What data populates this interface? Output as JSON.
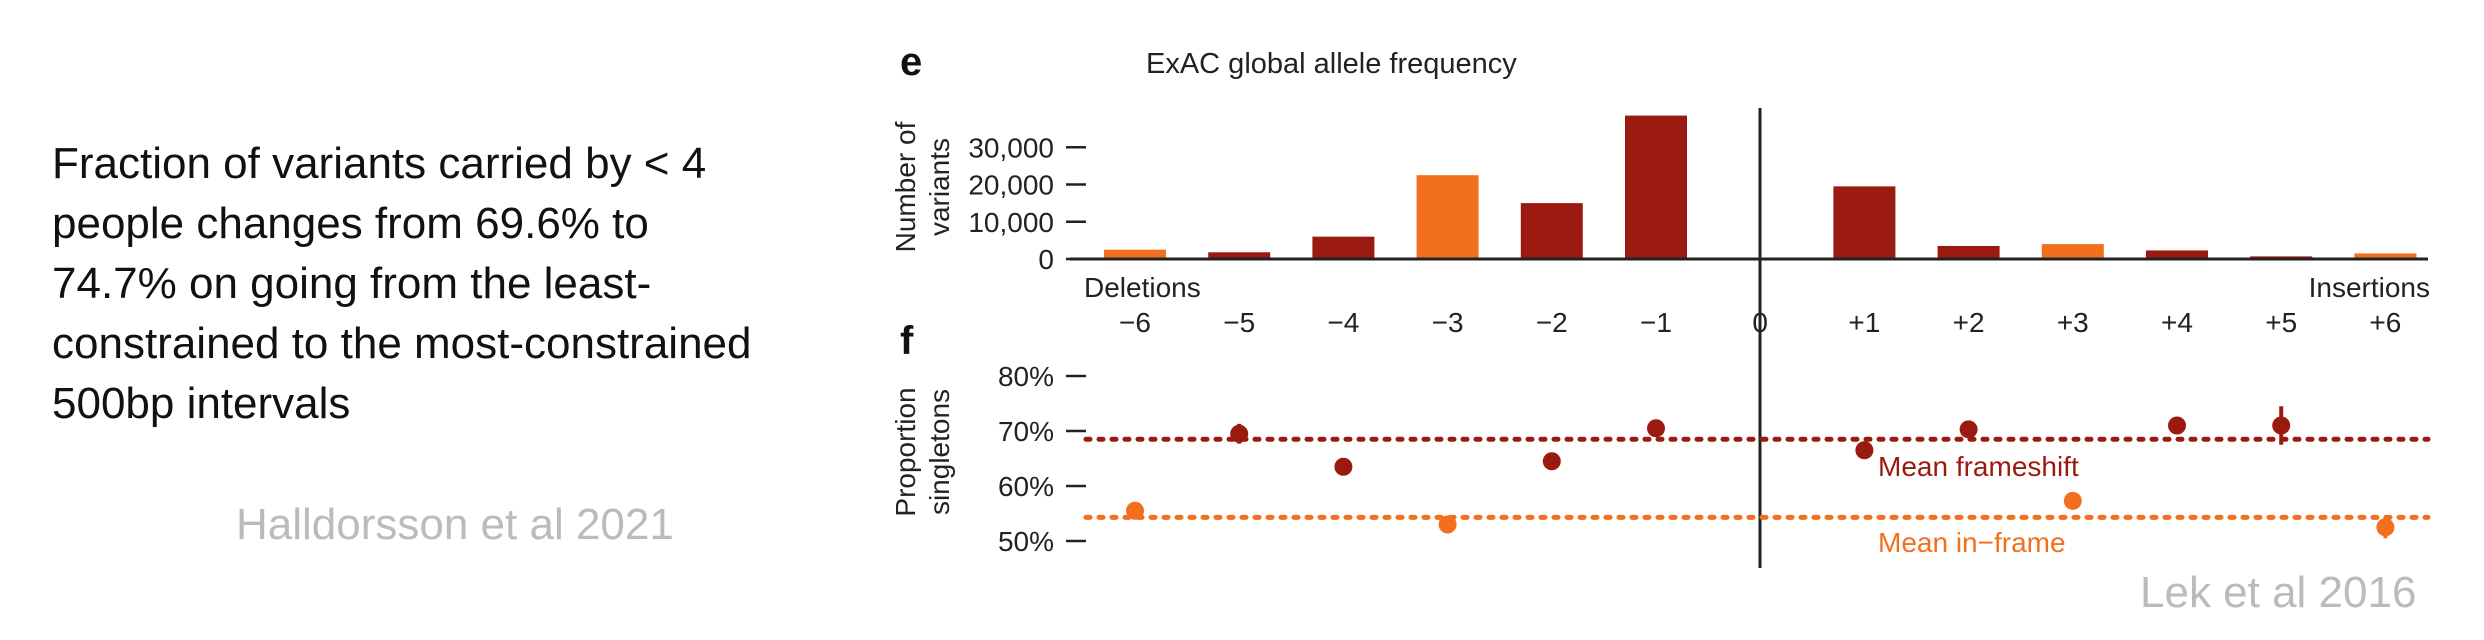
{
  "slide": {
    "text": "Fraction of variants carried by < 4 people changes from 69.6% to 74.7% on going from the least-constrained to the most-constrained 500bp intervals",
    "citation_left": "Halldorsson et al 2021",
    "citation_right": "Lek et al 2016"
  },
  "colors": {
    "frameshift": "#9b1a10",
    "inframe": "#f26f1e",
    "axis": "#222222"
  },
  "chart_data": [
    {
      "type": "bar",
      "panel_label": "e",
      "title": "ExAC global allele frequency",
      "ylabel": "Number of variants",
      "ylabel_lines": [
        "Number of",
        "variants"
      ],
      "ylim": [
        0,
        40000
      ],
      "yticks": [
        {
          "value": 0,
          "label": "0"
        },
        {
          "value": 10000,
          "label": "10,000"
        },
        {
          "value": 20000,
          "label": "20,000"
        },
        {
          "value": 30000,
          "label": "30,000"
        }
      ],
      "categories": [
        "−6",
        "−5",
        "−4",
        "−3",
        "−2",
        "−1",
        "0",
        "+1",
        "+2",
        "+3",
        "+4",
        "+5",
        "+6"
      ],
      "values": [
        2500,
        1800,
        6000,
        22500,
        15000,
        38500,
        null,
        19500,
        3500,
        4000,
        2300,
        700,
        1500
      ],
      "colors": [
        "inframe",
        "frameshift",
        "frameshift",
        "inframe",
        "frameshift",
        "frameshift",
        null,
        "frameshift",
        "frameshift",
        "inframe",
        "frameshift",
        "frameshift",
        "inframe"
      ],
      "annotations": {
        "left": "Deletions",
        "right": "Insertions"
      }
    },
    {
      "type": "scatter",
      "panel_label": "f",
      "ylabel": "Proportion singletons",
      "ylabel_lines": [
        "Proportion",
        "singletons"
      ],
      "ylim": [
        47,
        82
      ],
      "yticks": [
        {
          "value": 50,
          "label": "50%"
        },
        {
          "value": 60,
          "label": "60%"
        },
        {
          "value": 70,
          "label": "70%"
        },
        {
          "value": 80,
          "label": "80%"
        }
      ],
      "points": [
        {
          "x": "−6",
          "y": 55.5,
          "err": 1.5,
          "color": "inframe"
        },
        {
          "x": "−5",
          "y": 69.5,
          "err": 1.8,
          "color": "frameshift"
        },
        {
          "x": "−4",
          "y": 63.5,
          "err": 0.5,
          "color": "frameshift"
        },
        {
          "x": "−3",
          "y": 53.0,
          "err": 0.8,
          "color": "inframe"
        },
        {
          "x": "−2",
          "y": 64.5,
          "err": 0.5,
          "color": "frameshift"
        },
        {
          "x": "−1",
          "y": 70.5,
          "err": 0.5,
          "color": "frameshift"
        },
        {
          "x": "+1",
          "y": 66.5,
          "err": 0.5,
          "color": "frameshift"
        },
        {
          "x": "+2",
          "y": 70.3,
          "err": 0.8,
          "color": "frameshift"
        },
        {
          "x": "+3",
          "y": 57.3,
          "err": 0.5,
          "color": "inframe"
        },
        {
          "x": "+4",
          "y": 71.0,
          "err": 1.5,
          "color": "frameshift"
        },
        {
          "x": "+5",
          "y": 71.0,
          "err": 3.5,
          "color": "frameshift"
        },
        {
          "x": "+6",
          "y": 52.5,
          "err": 2.0,
          "color": "inframe"
        }
      ],
      "reference_lines": [
        {
          "label": "Mean frameshift",
          "y": 68.5,
          "color": "frameshift"
        },
        {
          "label": "Mean in−frame",
          "y": 54.3,
          "color": "inframe"
        }
      ]
    }
  ]
}
